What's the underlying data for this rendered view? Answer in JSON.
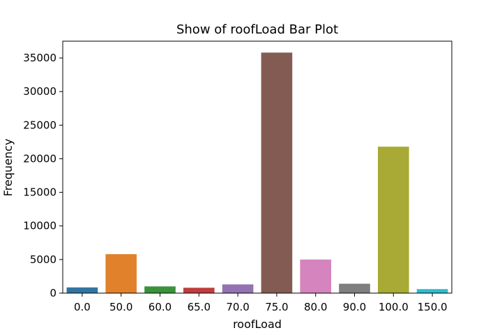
{
  "chart_data": {
    "type": "bar",
    "title": "Show of roofLoad Bar Plot",
    "xlabel": "roofLoad",
    "ylabel": "Frequency",
    "categories": [
      "0.0",
      "50.0",
      "60.0",
      "65.0",
      "70.0",
      "75.0",
      "80.0",
      "90.0",
      "100.0",
      "150.0"
    ],
    "values": [
      850,
      5800,
      1000,
      800,
      1300,
      35800,
      5000,
      1400,
      21800,
      600
    ],
    "colors": [
      "#3274a1",
      "#e1812c",
      "#3a923a",
      "#c03d3e",
      "#9372b2",
      "#845b53",
      "#d684bd",
      "#7f7f7f",
      "#a9aa35",
      "#2ebccd"
    ],
    "ylim": [
      0,
      37500
    ],
    "yticks": [
      0,
      5000,
      10000,
      15000,
      20000,
      25000,
      30000,
      35000
    ],
    "grid": false,
    "legend": "none"
  }
}
